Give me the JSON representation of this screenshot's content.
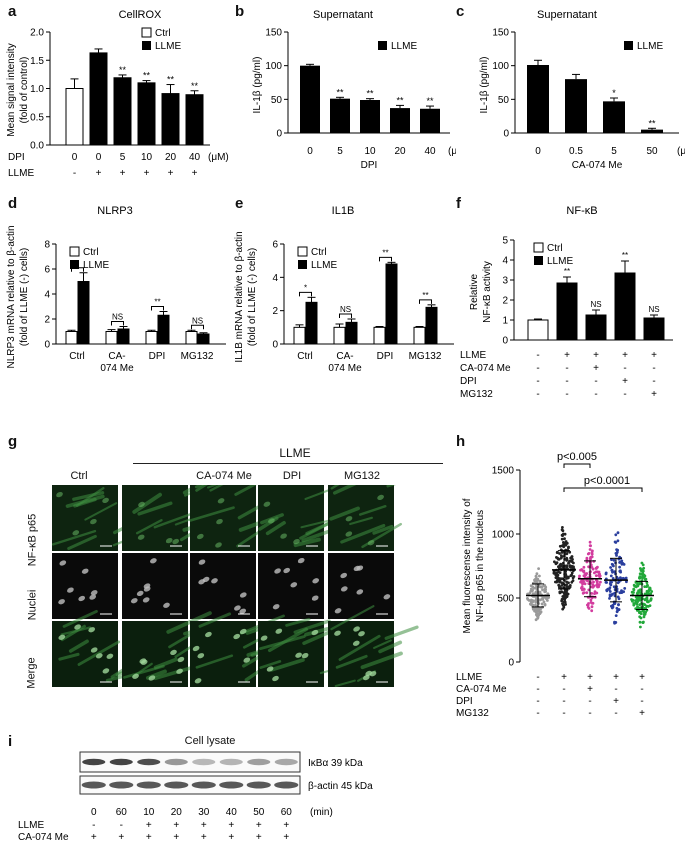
{
  "panels": {
    "a": "a",
    "b": "b",
    "c": "c",
    "d": "d",
    "e": "e",
    "f": "f",
    "g": "g",
    "h": "h",
    "i": "i"
  },
  "chart_data": [
    {
      "id": "a",
      "type": "bar",
      "title": "CellROX",
      "ylabel_line1": "Mean signal intensity",
      "ylabel_line2": "(fold of control)",
      "ylim": [
        0,
        2.0
      ],
      "yticks": [
        "0.0",
        "0.5",
        "1.0",
        "1.5",
        "2.0"
      ],
      "values": [
        1.0,
        1.63,
        1.19,
        1.1,
        0.91,
        0.89
      ],
      "errors": [
        0.17,
        0.07,
        0.05,
        0.04,
        0.16,
        0.07
      ],
      "colors": [
        "white",
        "black",
        "black",
        "black",
        "black",
        "black"
      ],
      "sig": [
        "",
        "",
        "**",
        "**",
        "**",
        "**"
      ],
      "legend": [
        "Ctrl",
        "LLME"
      ],
      "row1_label": "DPI",
      "row1": [
        "0",
        "0",
        "5",
        "10",
        "20",
        "40"
      ],
      "row1_unit": "(μM)",
      "row2_label": "LLME",
      "row2": [
        "-",
        "+",
        "+",
        "+",
        "+",
        "+"
      ]
    },
    {
      "id": "b",
      "type": "bar",
      "title": "Supernatant",
      "ylabel": "IL-1β (pg/ml)",
      "ylim": [
        0,
        150
      ],
      "yticks": [
        "0",
        "50",
        "100",
        "150"
      ],
      "values": [
        100,
        51,
        49,
        37,
        36
      ],
      "errors": [
        2,
        2,
        2,
        4,
        4
      ],
      "sig": [
        "",
        "**",
        "**",
        "**",
        "**"
      ],
      "legend": [
        "LLME"
      ],
      "categories": [
        "0",
        "5",
        "10",
        "20",
        "40"
      ],
      "unit": "(μM)",
      "xlabel": "DPI"
    },
    {
      "id": "c",
      "type": "bar",
      "title": "Supernatant",
      "ylabel": "IL-1β (pg/ml)",
      "ylim": [
        0,
        150
      ],
      "yticks": [
        "0",
        "50",
        "100",
        "150"
      ],
      "values": [
        101,
        80,
        47,
        5
      ],
      "errors": [
        7,
        7,
        5,
        2
      ],
      "sig": [
        "",
        "",
        "*",
        "**"
      ],
      "legend": [
        "LLME"
      ],
      "categories": [
        "0",
        "0.5",
        "5",
        "50"
      ],
      "unit": "(μM)",
      "xlabel": "CA-074 Me"
    },
    {
      "id": "d",
      "type": "grouped-bar",
      "title": "NLRP3",
      "ylabel_line1": "NLRP3 mRNA relative to β-actin",
      "ylabel_line2": "(fold of LLME (-) cells)",
      "ylim": [
        0,
        8
      ],
      "yticks": [
        "0",
        "2",
        "4",
        "6",
        "8"
      ],
      "categories": [
        "Ctrl",
        "CA-\n074 Me",
        "DPI",
        "MG132"
      ],
      "series": [
        {
          "name": "Ctrl",
          "values": [
            1.0,
            1.0,
            1.0,
            1.0
          ],
          "errors": [
            0.1,
            0.15,
            0.1,
            0.1
          ]
        },
        {
          "name": "LLME",
          "values": [
            5.0,
            1.2,
            2.3,
            0.8
          ],
          "errors": [
            0.7,
            0.2,
            0.3,
            0.1
          ]
        }
      ],
      "sig": [
        "*",
        "NS",
        "**",
        "NS"
      ]
    },
    {
      "id": "e",
      "type": "grouped-bar",
      "title": "IL1B",
      "ylabel_line1": "IL1B mRNA relative to β-actin",
      "ylabel_line2": "(fold of LLME (-) cells)",
      "ylim": [
        0,
        6
      ],
      "yticks": [
        "0",
        "2",
        "4",
        "6"
      ],
      "categories": [
        "Ctrl",
        "CA-\n074 Me",
        "DPI",
        "MG132"
      ],
      "series": [
        {
          "name": "Ctrl",
          "values": [
            1.0,
            1.0,
            1.0,
            1.0
          ],
          "errors": [
            0.15,
            0.2,
            0.05,
            0.05
          ]
        },
        {
          "name": "LLME",
          "values": [
            2.5,
            1.3,
            4.8,
            2.2
          ],
          "errors": [
            0.3,
            0.2,
            0.1,
            0.15
          ]
        }
      ],
      "sig": [
        "*",
        "NS",
        "**",
        "**"
      ]
    },
    {
      "id": "f",
      "type": "bar",
      "title": "NF-κB",
      "ylabel_line1": "Relative",
      "ylabel_line2": "NF-κB activity",
      "ylim": [
        0,
        5
      ],
      "yticks": [
        "0",
        "1",
        "2",
        "3",
        "4",
        "5"
      ],
      "values": [
        1.0,
        2.85,
        1.25,
        3.35,
        1.1
      ],
      "errors": [
        0.05,
        0.3,
        0.25,
        0.6,
        0.15
      ],
      "colors": [
        "white",
        "black",
        "black",
        "black",
        "black"
      ],
      "sig": [
        "",
        "**",
        "NS",
        "**",
        "NS"
      ],
      "legend": [
        "Ctrl",
        "LLME"
      ],
      "rows": [
        {
          "label": "LLME",
          "vals": [
            "-",
            "+",
            "+",
            "+",
            "+"
          ]
        },
        {
          "label": "CA-074 Me",
          "vals": [
            "-",
            "-",
            "+",
            "-",
            "-"
          ]
        },
        {
          "label": "DPI",
          "vals": [
            "-",
            "-",
            "-",
            "+",
            "-"
          ]
        },
        {
          "label": "MG132",
          "vals": [
            "-",
            "-",
            "-",
            "-",
            "+"
          ]
        }
      ]
    },
    {
      "id": "h",
      "type": "scatter",
      "ylabel_line1": "Mean fluorescense intensity of",
      "ylabel_line2": "NF-κB p65 in the nucleus",
      "ylim": [
        0,
        1500
      ],
      "yticks": [
        "0",
        "500",
        "1000",
        "1500"
      ],
      "groups": [
        {
          "color": "#9a9a9a",
          "median": 520,
          "sd": 90,
          "n": 150
        },
        {
          "color": "#222222",
          "median": 720,
          "sd": 150,
          "n": 200
        },
        {
          "color": "#d23c9e",
          "median": 650,
          "sd": 140,
          "n": 120
        },
        {
          "color": "#2b3f9e",
          "median": 640,
          "sd": 170,
          "n": 110
        },
        {
          "color": "#22a83a",
          "median": 520,
          "sd": 110,
          "n": 150
        }
      ],
      "pvals": [
        "p<0.005",
        "p<0.0001"
      ],
      "rows": [
        {
          "label": "LLME",
          "vals": [
            "-",
            "+",
            "+",
            "+",
            "+"
          ]
        },
        {
          "label": "CA-074 Me",
          "vals": [
            "-",
            "-",
            "+",
            "-",
            "-"
          ]
        },
        {
          "label": "DPI",
          "vals": [
            "-",
            "-",
            "-",
            "+",
            "-"
          ]
        },
        {
          "label": "MG132",
          "vals": [
            "-",
            "-",
            "-",
            "-",
            "+"
          ]
        }
      ]
    }
  ],
  "panel_g": {
    "header": "LLME",
    "cols": [
      "Ctrl",
      "",
      "CA-074 Me",
      "DPI",
      "MG132"
    ],
    "rows": [
      "NF-κB p65",
      "Nuclei",
      "Merge"
    ]
  },
  "panel_i": {
    "title": "Cell lysate",
    "bands": [
      "IκBα 39 kDa",
      "β-actin 45 kDa"
    ],
    "times": [
      "0",
      "60",
      "10",
      "20",
      "30",
      "40",
      "50",
      "60"
    ],
    "time_unit": "(min)",
    "rows": [
      {
        "label": "LLME",
        "vals": [
          "-",
          "-",
          "+",
          "+",
          "+",
          "+",
          "+",
          "+"
        ]
      },
      {
        "label": "CA-074 Me",
        "vals": [
          "+",
          "+",
          "+",
          "+",
          "+",
          "+",
          "+",
          "+"
        ]
      }
    ]
  }
}
